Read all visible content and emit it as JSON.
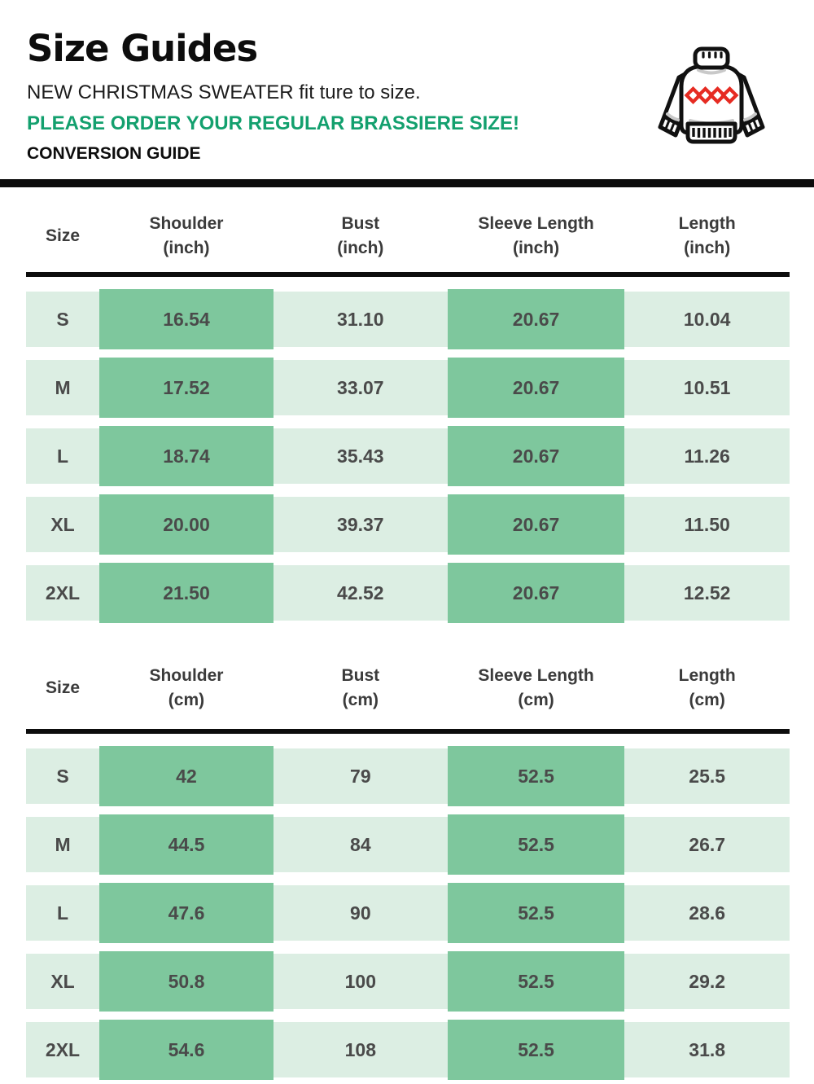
{
  "page": {
    "title": "Size Guides",
    "subtitle": "NEW CHRISTMAS SWEATER fit ture to size.",
    "notice": "PLEASE ORDER YOUR REGULAR BRASSIERE SIZE!",
    "conversion_heading": "CONVERSION GUIDE"
  },
  "icons": {
    "sweater": "christmas-sweater-icon"
  },
  "colors": {
    "notice_green": "#13a06e",
    "cell_dark_green": "#7ec79d",
    "cell_light_green": "#dceee3",
    "cell_text": "#4a4a4a",
    "header_text": "#3b3b3b",
    "divider_black": "#0c0c0c",
    "sweater_diamond_red": "#e62b22"
  },
  "tables": [
    {
      "name": "size-table-inch",
      "unit": "inch",
      "columns": [
        {
          "label": "Size",
          "unit": ""
        },
        {
          "label": "Shoulder",
          "unit": "(inch)"
        },
        {
          "label": "Bust",
          "unit": "(inch)"
        },
        {
          "label": "Sleeve Length",
          "unit": "(inch)"
        },
        {
          "label": "Length",
          "unit": "(inch)"
        }
      ],
      "rows": [
        {
          "size": "S",
          "values": [
            "16.54",
            "31.10",
            "20.67",
            "10.04"
          ]
        },
        {
          "size": "M",
          "values": [
            "17.52",
            "33.07",
            "20.67",
            "10.51"
          ]
        },
        {
          "size": "L",
          "values": [
            "18.74",
            "35.43",
            "20.67",
            "11.26"
          ]
        },
        {
          "size": "XL",
          "values": [
            "20.00",
            "39.37",
            "20.67",
            "11.50"
          ]
        },
        {
          "size": "2XL",
          "values": [
            "21.50",
            "42.52",
            "20.67",
            "12.52"
          ]
        }
      ]
    },
    {
      "name": "size-table-cm",
      "unit": "cm",
      "columns": [
        {
          "label": "Size",
          "unit": ""
        },
        {
          "label": "Shoulder",
          "unit": "(cm)"
        },
        {
          "label": "Bust",
          "unit": "(cm)"
        },
        {
          "label": "Sleeve Length",
          "unit": "(cm)"
        },
        {
          "label": "Length",
          "unit": "(cm)"
        }
      ],
      "rows": [
        {
          "size": "S",
          "values": [
            "42",
            "79",
            "52.5",
            "25.5"
          ]
        },
        {
          "size": "M",
          "values": [
            "44.5",
            "84",
            "52.5",
            "26.7"
          ]
        },
        {
          "size": "L",
          "values": [
            "47.6",
            "90",
            "52.5",
            "28.6"
          ]
        },
        {
          "size": "XL",
          "values": [
            "50.8",
            "100",
            "52.5",
            "29.2"
          ]
        },
        {
          "size": "2XL",
          "values": [
            "54.6",
            "108",
            "52.5",
            "31.8"
          ]
        }
      ]
    }
  ]
}
